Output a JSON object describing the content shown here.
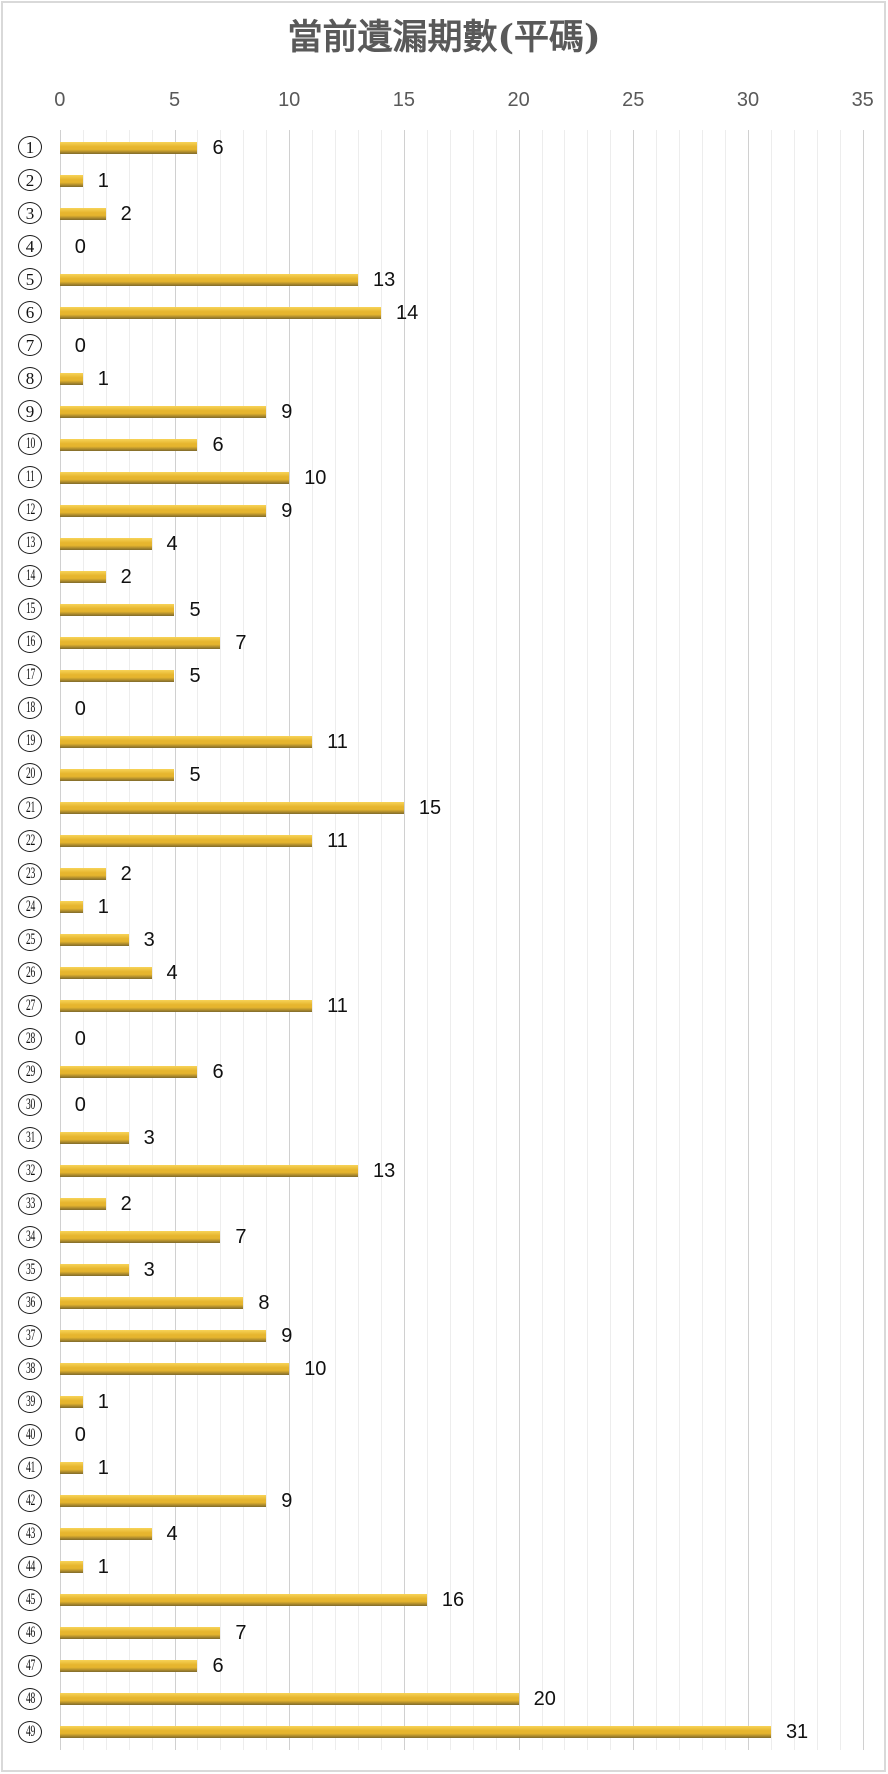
{
  "chart_data": {
    "type": "bar",
    "orientation": "horizontal",
    "title": "當前遺漏期數(平碼)",
    "xlabel": "",
    "ylabel": "",
    "categories": [
      "①",
      "②",
      "③",
      "④",
      "⑤",
      "⑥",
      "⑦",
      "⑧",
      "⑨",
      "⑩",
      "⑪",
      "⑫",
      "⑬",
      "⑭",
      "⑮",
      "⑯",
      "⑰",
      "⑱",
      "⑲",
      "⑳",
      "㉑",
      "㉒",
      "㉓",
      "㉔",
      "㉕",
      "㉖",
      "㉗",
      "㉘",
      "㉙",
      "㉚",
      "㉛",
      "㉜",
      "㉝",
      "㉞",
      "㉟",
      "㊱",
      "㊲",
      "㊳",
      "㊴",
      "㊵",
      "㊶",
      "㊷",
      "㊸",
      "㊹",
      "㊺",
      "㊻",
      "㊼",
      "㊽",
      "㊾"
    ],
    "values": [
      6,
      1,
      2,
      0,
      13,
      14,
      0,
      1,
      9,
      6,
      10,
      9,
      4,
      2,
      5,
      7,
      5,
      0,
      11,
      5,
      15,
      11,
      2,
      1,
      3,
      4,
      11,
      0,
      6,
      0,
      3,
      13,
      2,
      7,
      3,
      8,
      9,
      10,
      1,
      0,
      1,
      9,
      4,
      1,
      16,
      7,
      6,
      20,
      31
    ],
    "xlim": [
      0,
      35
    ],
    "xticks": [
      0,
      5,
      10,
      15,
      20,
      25,
      30,
      35
    ],
    "xtick_labels": [
      "0",
      "5",
      "10",
      "15",
      "20",
      "25",
      "30",
      "35"
    ],
    "xaxis_position": "top",
    "grid": {
      "on": true,
      "major_step": 5,
      "minor_step": 1
    },
    "legend": "none",
    "data_labels": true
  },
  "colors": {
    "bar_top": "#F7D358",
    "bar_mid": "#E6B52E",
    "bar_bottom": "#7F6A2C",
    "title": "#595959",
    "tick_labels": "#595959",
    "gridline_major": "#D0D0D0",
    "gridline_minor": "#EDEDED",
    "frame_border": "#D9D9D9"
  }
}
